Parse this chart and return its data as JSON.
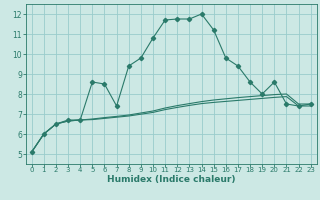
{
  "bg_color": "#cce8e4",
  "grid_color": "#99cccc",
  "line_color": "#2a7a6a",
  "xlabel": "Humidex (Indice chaleur)",
  "xlim": [
    -0.5,
    23.5
  ],
  "ylim": [
    4.5,
    12.5
  ],
  "xticks": [
    0,
    1,
    2,
    3,
    4,
    5,
    6,
    7,
    8,
    9,
    10,
    11,
    12,
    13,
    14,
    15,
    16,
    17,
    18,
    19,
    20,
    21,
    22,
    23
  ],
  "yticks": [
    5,
    6,
    7,
    8,
    9,
    10,
    11,
    12
  ],
  "line1_x": [
    0,
    1,
    2,
    3,
    4,
    5,
    6,
    7,
    8,
    9,
    10,
    11,
    12,
    13,
    14,
    15,
    16,
    17,
    18,
    19,
    20,
    21,
    22,
    23
  ],
  "line1_y": [
    5.1,
    6.0,
    6.5,
    6.7,
    6.7,
    8.6,
    8.5,
    7.4,
    9.4,
    9.8,
    10.8,
    11.7,
    11.75,
    11.75,
    12.0,
    11.2,
    9.8,
    9.4,
    8.6,
    8.0,
    8.6,
    7.5,
    7.4,
    7.5
  ],
  "line2_x": [
    0,
    1,
    2,
    3,
    4,
    5,
    6,
    7,
    8,
    9,
    10,
    11,
    12,
    13,
    14,
    15,
    16,
    17,
    18,
    19,
    20,
    21,
    22,
    23
  ],
  "line2_y": [
    5.1,
    6.0,
    6.5,
    6.65,
    6.7,
    6.75,
    6.82,
    6.88,
    6.95,
    7.05,
    7.15,
    7.3,
    7.42,
    7.52,
    7.62,
    7.7,
    7.76,
    7.82,
    7.87,
    7.92,
    7.97,
    8.0,
    7.5,
    7.5
  ],
  "line3_x": [
    0,
    1,
    2,
    3,
    4,
    5,
    6,
    7,
    8,
    9,
    10,
    11,
    12,
    13,
    14,
    15,
    16,
    17,
    18,
    19,
    20,
    21,
    22,
    23
  ],
  "line3_y": [
    5.1,
    6.0,
    6.5,
    6.65,
    6.7,
    6.72,
    6.78,
    6.84,
    6.9,
    6.99,
    7.08,
    7.22,
    7.33,
    7.43,
    7.52,
    7.58,
    7.63,
    7.68,
    7.73,
    7.78,
    7.83,
    7.87,
    7.4,
    7.4
  ]
}
